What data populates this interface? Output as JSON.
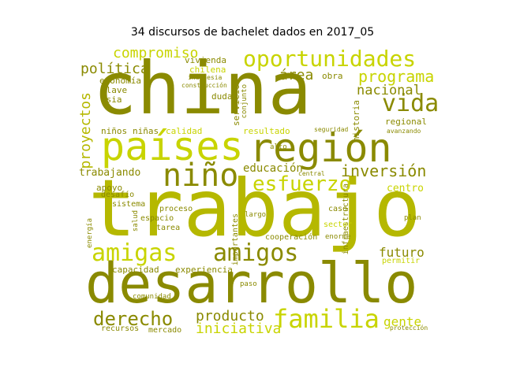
{
  "title": "34 discursos de bachelet dados en 2017_05",
  "colors": {
    "bright": "#c8d400",
    "olive": "#8a8a00",
    "light": "#b5b800",
    "dark": "#7a7a00"
  },
  "words": [
    "china",
    "trabajo",
    "desarrollo",
    "países",
    "región",
    "oportunidades",
    "niño",
    "amigas",
    "amigos",
    "familia",
    "esfuerzo",
    "vida",
    "compromiso",
    "política",
    "programa",
    "nacional",
    "inversión",
    "educación",
    "derecho",
    "producto",
    "iniciativa",
    "futuro",
    "proyectos",
    "área",
    "centro",
    "gente",
    "trabajando",
    "apoyo",
    "desafío",
    "capacidad",
    "experiencia",
    "calidad",
    "resultado",
    "economía",
    "clave",
    "asia",
    "niños",
    "niñas",
    "vivienda",
    "chilena",
    "obra",
    "duda",
    "servicio",
    "conjunto",
    "historia",
    "regional",
    "infraestructura",
    "cooperación",
    "importantes",
    "recursos",
    "mercado",
    "comunidad",
    "sistema",
    "espacio",
    "tarea",
    "proceso",
    "energía",
    "salud",
    "permitir",
    "caso",
    "sector",
    "enorme",
    "alto",
    "largo",
    "paso",
    "plan",
    "indonesia",
    "construcción",
    "central",
    "seguridad",
    "avanzando",
    "protección"
  ]
}
